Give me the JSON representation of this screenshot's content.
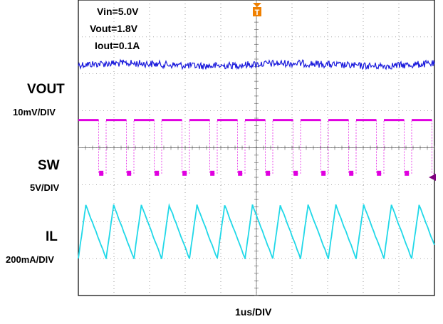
{
  "chart_data": {
    "type": "line",
    "title": "",
    "annotations": [
      "Vin=5.0V",
      "Vout=1.8V",
      "Iout=0.1A"
    ],
    "timebase": "1us/DIV",
    "trigger_marker": "T",
    "grid": true,
    "x": {
      "unit": "us",
      "range": [
        0,
        10
      ],
      "divisions": 10
    },
    "channels": [
      {
        "name": "VOUT",
        "scale": "10mV/DIV",
        "color": "#1a1adc",
        "waveform": "ripple",
        "center_div": 1.75,
        "ripple_div": 0.12
      },
      {
        "name": "SW",
        "scale": "5V/DIV",
        "color": "#e000e0",
        "waveform": "pulse",
        "high_div": 3.25,
        "low_div": 4.7,
        "period_us": 0.78,
        "duty": 0.73
      },
      {
        "name": "IL",
        "scale": "200mA/DIV",
        "color": "#20d8e8",
        "waveform": "triangle",
        "min_div": 7.0,
        "max_div": 5.55,
        "period_us": 0.78,
        "rise_fraction": 0.27
      }
    ],
    "colors": {
      "grid": "#555555",
      "frame": "#000000",
      "trigger": "#f08000",
      "ref_marker": "#800080"
    }
  }
}
